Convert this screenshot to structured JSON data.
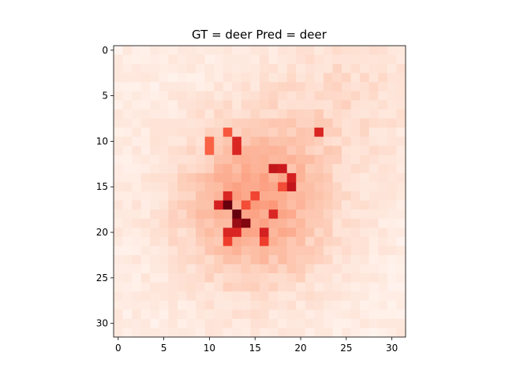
{
  "chart_data": {
    "type": "heatmap",
    "title": "GT = deer Pred = deer",
    "xlabel": "",
    "ylabel": "",
    "colormap": "Reds",
    "grid": false,
    "rows": 32,
    "cols": 32,
    "xlim": [
      -0.5,
      31.5
    ],
    "ylim": [
      31.5,
      -0.5
    ],
    "x_ticks": [
      0,
      5,
      10,
      15,
      20,
      25,
      30
    ],
    "y_ticks": [
      0,
      5,
      10,
      15,
      20,
      25,
      30
    ],
    "x_tick_labels": [
      "0",
      "5",
      "10",
      "15",
      "20",
      "25",
      "30"
    ],
    "y_tick_labels": [
      "0",
      "5",
      "10",
      "15",
      "20",
      "25",
      "30"
    ],
    "value_range": [
      0,
      1
    ],
    "hotspots": [
      {
        "row": 17,
        "col": 12,
        "value": 1.0
      },
      {
        "row": 18,
        "col": 13,
        "value": 1.0
      },
      {
        "row": 19,
        "col": 14,
        "value": 0.95
      },
      {
        "row": 19,
        "col": 13,
        "value": 0.9
      },
      {
        "row": 17,
        "col": 11,
        "value": 0.72
      },
      {
        "row": 16,
        "col": 12,
        "value": 0.7
      },
      {
        "row": 20,
        "col": 12,
        "value": 0.7
      },
      {
        "row": 20,
        "col": 13,
        "value": 0.7
      },
      {
        "row": 20,
        "col": 16,
        "value": 0.72
      },
      {
        "row": 21,
        "col": 12,
        "value": 0.62
      },
      {
        "row": 21,
        "col": 16,
        "value": 0.62
      },
      {
        "row": 18,
        "col": 17,
        "value": 0.7
      },
      {
        "row": 13,
        "col": 17,
        "value": 0.78
      },
      {
        "row": 13,
        "col": 18,
        "value": 0.75
      },
      {
        "row": 14,
        "col": 19,
        "value": 0.72
      },
      {
        "row": 15,
        "col": 19,
        "value": 0.78
      },
      {
        "row": 15,
        "col": 18,
        "value": 0.58
      },
      {
        "row": 16,
        "col": 15,
        "value": 0.6
      },
      {
        "row": 17,
        "col": 14,
        "value": 0.58
      },
      {
        "row": 10,
        "col": 13,
        "value": 0.7
      },
      {
        "row": 11,
        "col": 13,
        "value": 0.7
      },
      {
        "row": 9,
        "col": 12,
        "value": 0.55
      },
      {
        "row": 10,
        "col": 10,
        "value": 0.52
      },
      {
        "row": 11,
        "col": 10,
        "value": 0.52
      },
      {
        "row": 9,
        "col": 22,
        "value": 0.7
      }
    ]
  }
}
